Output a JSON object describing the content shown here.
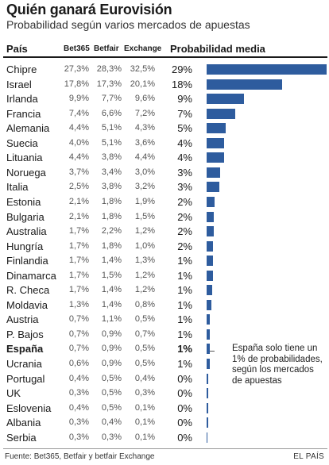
{
  "title": "Quién ganará Eurovisión",
  "subtitle": "Probabilidad según varios mercados de apuestas",
  "headers": {
    "country": "País",
    "bet365": "Bet365",
    "betfair": "Betfair",
    "exchange": "Exchange",
    "mean": "Probabilidad media"
  },
  "note": "España solo tiene un 1% de probabilidades, según los mercados de apuestas",
  "source": "Fuente: Bet365, Betfair y betfair Exchange",
  "brand": "EL PAÍS",
  "colors": {
    "bar": "#2e5c9e"
  },
  "chart_data": {
    "type": "bar",
    "orientation": "horizontal",
    "highlight": "España",
    "rows": [
      {
        "country": "Chipre",
        "bet365": "27,3%",
        "betfair": "28,3%",
        "exchange": "32,5%",
        "mean_label": "29%",
        "mean": 29.4
      },
      {
        "country": "Israel",
        "bet365": "17,8%",
        "betfair": "17,3%",
        "exchange": "20,1%",
        "mean_label": "18%",
        "mean": 18.4
      },
      {
        "country": "Irlanda",
        "bet365": "9,9%",
        "betfair": "7,7%",
        "exchange": "9,6%",
        "mean_label": "9%",
        "mean": 9.1
      },
      {
        "country": "Francia",
        "bet365": "7,4%",
        "betfair": "6,6%",
        "exchange": "7,2%",
        "mean_label": "7%",
        "mean": 7.1
      },
      {
        "country": "Alemania",
        "bet365": "4,4%",
        "betfair": "5,1%",
        "exchange": "4,3%",
        "mean_label": "5%",
        "mean": 4.6
      },
      {
        "country": "Suecia",
        "bet365": "4,0%",
        "betfair": "5,1%",
        "exchange": "3,6%",
        "mean_label": "4%",
        "mean": 4.2
      },
      {
        "country": "Lituania",
        "bet365": "4,4%",
        "betfair": "3,8%",
        "exchange": "4,4%",
        "mean_label": "4%",
        "mean": 4.2
      },
      {
        "country": "Noruega",
        "bet365": "3,7%",
        "betfair": "3,4%",
        "exchange": "3,0%",
        "mean_label": "3%",
        "mean": 3.4
      },
      {
        "country": "Italia",
        "bet365": "2,5%",
        "betfair": "3,8%",
        "exchange": "3,2%",
        "mean_label": "3%",
        "mean": 3.2
      },
      {
        "country": "Estonia",
        "bet365": "2,1%",
        "betfair": "1,8%",
        "exchange": "1,9%",
        "mean_label": "2%",
        "mean": 1.9
      },
      {
        "country": "Bulgaria",
        "bet365": "2,1%",
        "betfair": "1,8%",
        "exchange": "1,5%",
        "mean_label": "2%",
        "mean": 1.8
      },
      {
        "country": "Australia",
        "bet365": "1,7%",
        "betfair": "2,2%",
        "exchange": "1,2%",
        "mean_label": "2%",
        "mean": 1.7
      },
      {
        "country": "Hungría",
        "bet365": "1,7%",
        "betfair": "1,8%",
        "exchange": "1,0%",
        "mean_label": "2%",
        "mean": 1.5
      },
      {
        "country": "Finlandia",
        "bet365": "1,7%",
        "betfair": "1,4%",
        "exchange": "1,3%",
        "mean_label": "1%",
        "mean": 1.5
      },
      {
        "country": "Dinamarca",
        "bet365": "1,7%",
        "betfair": "1,5%",
        "exchange": "1,2%",
        "mean_label": "1%",
        "mean": 1.5
      },
      {
        "country": "R. Checa",
        "bet365": "1,7%",
        "betfair": "1,4%",
        "exchange": "1,2%",
        "mean_label": "1%",
        "mean": 1.4
      },
      {
        "country": "Moldavia",
        "bet365": "1,3%",
        "betfair": "1,4%",
        "exchange": "0,8%",
        "mean_label": "1%",
        "mean": 1.2
      },
      {
        "country": "Austria",
        "bet365": "0,7%",
        "betfair": "1,1%",
        "exchange": "0,5%",
        "mean_label": "1%",
        "mean": 0.8
      },
      {
        "country": "P. Bajos",
        "bet365": "0,7%",
        "betfair": "0,9%",
        "exchange": "0,7%",
        "mean_label": "1%",
        "mean": 0.8
      },
      {
        "country": "España",
        "bet365": "0,7%",
        "betfair": "0,9%",
        "exchange": "0,5%",
        "mean_label": "1%",
        "mean": 0.7
      },
      {
        "country": "Ucrania",
        "bet365": "0,6%",
        "betfair": "0,9%",
        "exchange": "0,5%",
        "mean_label": "1%",
        "mean": 0.7
      },
      {
        "country": "Portugal",
        "bet365": "0,4%",
        "betfair": "0,5%",
        "exchange": "0,4%",
        "mean_label": "0%",
        "mean": 0.4
      },
      {
        "country": "UK",
        "bet365": "0,3%",
        "betfair": "0,5%",
        "exchange": "0,3%",
        "mean_label": "0%",
        "mean": 0.4
      },
      {
        "country": "Eslovenia",
        "bet365": "0,4%",
        "betfair": "0,5%",
        "exchange": "0,1%",
        "mean_label": "0%",
        "mean": 0.3
      },
      {
        "country": "Albania",
        "bet365": "0,3%",
        "betfair": "0,4%",
        "exchange": "0,1%",
        "mean_label": "0%",
        "mean": 0.3
      },
      {
        "country": "Serbia",
        "bet365": "0,3%",
        "betfair": "0,3%",
        "exchange": "0,1%",
        "mean_label": "0%",
        "mean": 0.2
      }
    ]
  }
}
